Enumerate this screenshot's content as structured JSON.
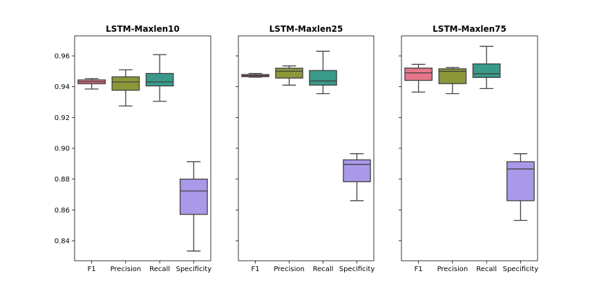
{
  "chart_data": [
    {
      "type": "box",
      "title": "LSTM-Maxlen10",
      "categories": [
        "F1",
        "Precision",
        "Recall",
        "Specificity"
      ],
      "ylim": [
        0.827,
        0.973
      ],
      "yticks": [
        0.84,
        0.86,
        0.88,
        0.9,
        0.92,
        0.94,
        0.96
      ],
      "ytick_labels": [
        "0.84",
        "0.86",
        "0.88",
        "0.90",
        "0.92",
        "0.94",
        "0.96"
      ],
      "grid": false,
      "boxes": [
        {
          "min": 0.9385,
          "q1": 0.9419,
          "median": 0.9432,
          "q3": 0.9444,
          "max": 0.9453
        },
        {
          "min": 0.9275,
          "q1": 0.9377,
          "median": 0.9431,
          "q3": 0.9464,
          "max": 0.951
        },
        {
          "min": 0.9305,
          "q1": 0.9405,
          "median": 0.9431,
          "q3": 0.9486,
          "max": 0.9608
        },
        {
          "min": 0.8333,
          "q1": 0.8571,
          "median": 0.8723,
          "q3": 0.88,
          "max": 0.8913
        }
      ]
    },
    {
      "type": "box",
      "title": "LSTM-Maxlen25",
      "categories": [
        "F1",
        "Precision",
        "Recall",
        "Specificity"
      ],
      "ylim": [
        0.827,
        0.973
      ],
      "yticks": [
        0.84,
        0.86,
        0.88,
        0.9,
        0.92,
        0.94,
        0.96
      ],
      "grid": false,
      "boxes": [
        {
          "min": 0.9462,
          "q1": 0.9465,
          "median": 0.9472,
          "q3": 0.9479,
          "max": 0.9486
        },
        {
          "min": 0.941,
          "q1": 0.9456,
          "median": 0.95,
          "q3": 0.952,
          "max": 0.9535
        },
        {
          "min": 0.9355,
          "q1": 0.941,
          "median": 0.9437,
          "q3": 0.9505,
          "max": 0.963
        },
        {
          "min": 0.866,
          "q1": 0.8783,
          "median": 0.8895,
          "q3": 0.8925,
          "max": 0.8965
        }
      ]
    },
    {
      "type": "box",
      "title": "LSTM-Maxlen75",
      "categories": [
        "F1",
        "Precision",
        "Recall",
        "Specificity"
      ],
      "ylim": [
        0.827,
        0.973
      ],
      "yticks": [
        0.84,
        0.86,
        0.88,
        0.9,
        0.92,
        0.94,
        0.96
      ],
      "grid": false,
      "boxes": [
        {
          "min": 0.9365,
          "q1": 0.9441,
          "median": 0.949,
          "q3": 0.9521,
          "max": 0.9545
        },
        {
          "min": 0.9355,
          "q1": 0.942,
          "median": 0.95,
          "q3": 0.9516,
          "max": 0.9525
        },
        {
          "min": 0.9388,
          "q1": 0.946,
          "median": 0.9484,
          "q3": 0.9548,
          "max": 0.9662
        },
        {
          "min": 0.8532,
          "q1": 0.866,
          "median": 0.8866,
          "q3": 0.8913,
          "max": 0.8965
        }
      ]
    }
  ],
  "colors": {
    "F1": "#e5768a",
    "Precision": "#8c973a",
    "Recall": "#3a9a8a",
    "Specificity": "#aa98e9",
    "edge": "#3f3f3f",
    "axes": "#000000"
  }
}
